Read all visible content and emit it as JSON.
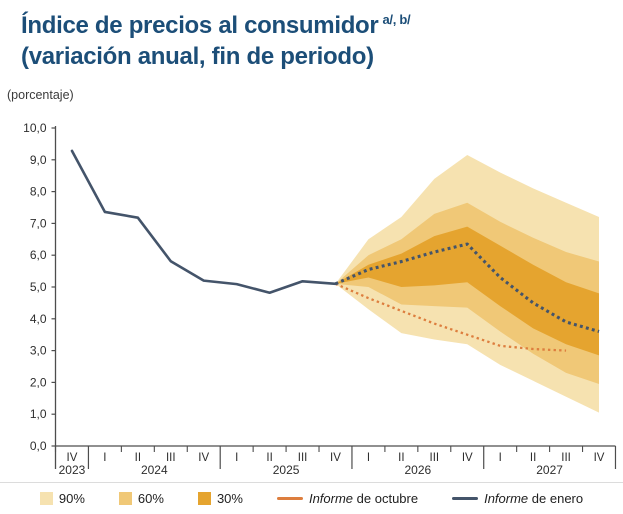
{
  "header": {
    "title": "Índice de precios al consumidor",
    "superscript": "a/, b/",
    "subtitle": "(variación anual, fin de periodo)",
    "unit_label": "(porcentaje)"
  },
  "colors": {
    "title": "#1C4E78",
    "axis_text": "#2e2e2e",
    "axis_line": "#4d4d4d",
    "band_90": "#F6E2B0",
    "band_60": "#F0C877",
    "band_30": "#E5A42F",
    "line_enero": "#44546A",
    "line_octubre": "#DD7E3E"
  },
  "chart_data": {
    "type": "line",
    "title": "Índice de precios al consumidor (variación anual, fin de periodo)",
    "ylabel": "(porcentaje)",
    "ylim": [
      0,
      10
    ],
    "grid": false,
    "legend_position": "bottom",
    "y_tick_labels": [
      "0,0",
      "1,0",
      "2,0",
      "3,0",
      "4,0",
      "5,0",
      "6,0",
      "7,0",
      "8,0",
      "9,0",
      "10,0"
    ],
    "x_quarter_labels": [
      "IV",
      "I",
      "II",
      "III",
      "IV",
      "I",
      "II",
      "III",
      "IV",
      "I",
      "II",
      "III",
      "IV",
      "I",
      "II",
      "III",
      "IV"
    ],
    "x_years": [
      {
        "label": "2023",
        "start": 0,
        "span": 1
      },
      {
        "label": "2024",
        "start": 1,
        "span": 4
      },
      {
        "label": "2025",
        "start": 5,
        "span": 4
      },
      {
        "label": "2026",
        "start": 9,
        "span": 4
      },
      {
        "label": "2027",
        "start": 13,
        "span": 4
      }
    ],
    "series": {
      "historical": {
        "legend": "Informe de enero",
        "style": "solid",
        "color_key": "line_enero",
        "start_index": 0,
        "values": [
          9.28,
          7.36,
          7.18,
          5.81,
          5.2,
          5.09,
          4.82,
          5.18,
          5.1
        ]
      },
      "forecast_enero": {
        "legend": "Informe de enero",
        "style": "dotted",
        "color_key": "line_enero",
        "start_index": 8,
        "values": [
          5.1,
          5.55,
          5.8,
          6.1,
          6.35,
          5.3,
          4.5,
          3.9,
          3.6
        ]
      },
      "forecast_octubre": {
        "legend": "Informe de octubre",
        "style": "dotted",
        "color_key": "line_octubre",
        "start_index": 8,
        "values": [
          5.1,
          4.65,
          4.25,
          3.85,
          3.5,
          3.15,
          3.05,
          3.0
        ]
      }
    },
    "fan_bands": [
      {
        "label": "90%",
        "color_key": "band_90",
        "start_index": 8,
        "top": [
          5.1,
          6.5,
          7.2,
          8.4,
          9.15,
          8.6,
          8.1,
          7.65,
          7.2
        ],
        "bottom": [
          5.1,
          4.3,
          3.55,
          3.35,
          3.2,
          2.55,
          2.05,
          1.55,
          1.05
        ]
      },
      {
        "label": "60%",
        "color_key": "band_60",
        "start_index": 8,
        "top": [
          5.1,
          6.0,
          6.5,
          7.3,
          7.65,
          7.05,
          6.55,
          6.1,
          5.8
        ],
        "bottom": [
          5.1,
          5.0,
          4.45,
          4.4,
          4.35,
          3.6,
          2.9,
          2.3,
          1.95
        ]
      },
      {
        "label": "30%",
        "color_key": "band_30",
        "start_index": 8,
        "top": [
          5.1,
          5.7,
          6.05,
          6.6,
          6.9,
          6.3,
          5.7,
          5.15,
          4.8
        ],
        "bottom": [
          5.1,
          5.3,
          5.0,
          5.05,
          5.15,
          4.4,
          3.7,
          3.2,
          2.85
        ]
      }
    ]
  },
  "legend": {
    "items": [
      {
        "kind": "swatch",
        "color_key": "band_90",
        "label": "90%"
      },
      {
        "kind": "swatch",
        "color_key": "band_60",
        "label": "60%"
      },
      {
        "kind": "swatch",
        "color_key": "band_30",
        "label": "30%"
      },
      {
        "kind": "line",
        "color_key": "line_octubre",
        "label_italic": "Informe",
        "label_rest": " de octubre"
      },
      {
        "kind": "line",
        "color_key": "line_enero",
        "label_italic": "Informe",
        "label_rest": " de enero"
      }
    ]
  }
}
